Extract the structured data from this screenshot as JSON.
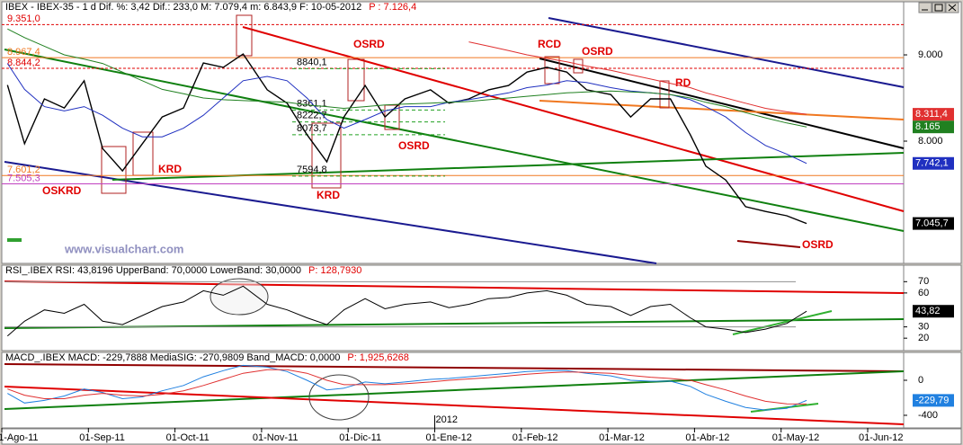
{
  "chart_data": [
    {
      "type": "line",
      "title": "IBEX - IBEX-35 - 1 d Dif. %: 3,42 Dif.: 233,0 M: 7.079,4 m: 6.843,9 F: 10-05-2012",
      "title_price": "P : 7.126,4",
      "x": [
        "03-Ago-11",
        "09-Ago-11",
        "16-Ago-11",
        "23-Ago-11",
        "30-Ago-11",
        "06-Sep-11",
        "13-Sep-11",
        "20-Sep-11",
        "27-Sep-11",
        "04-Oct-11",
        "11-Oct-11",
        "18-Oct-11",
        "25-Oct-11",
        "03-Nov-11",
        "10-Nov-11",
        "17-Nov-11",
        "24-Nov-11",
        "30-Nov-11",
        "07-Dic-11",
        "14-Dic-11",
        "21-Dic-11",
        "30-Dic-11",
        "06-Ene-12",
        "13-Ene-12",
        "20-Ene-12",
        "27-Ene-12",
        "03-Feb-12",
        "10-Feb-12",
        "17-Feb-12",
        "24-Feb-12",
        "02-Mar-12",
        "09-Mar-12",
        "16-Mar-12",
        "23-Mar-12",
        "30-Mar-12",
        "05-Abr-12",
        "12-Abr-12",
        "19-Abr-12",
        "26-Abr-12",
        "03-May-12",
        "10-May-12"
      ],
      "series": [
        {
          "color": "#000000",
          "width": 1.4,
          "last_label": "7.045,7",
          "values": [
            8650,
            7970,
            8490,
            8385,
            8700,
            7915,
            7655,
            7970,
            8280,
            8385,
            8905,
            8855,
            9010,
            8595,
            8440,
            8075,
            7760,
            8280,
            8645,
            8280,
            8490,
            8595,
            8440,
            8490,
            8595,
            8645,
            8800,
            8855,
            8800,
            8595,
            8540,
            8280,
            8490,
            8490,
            8075,
            7710,
            7550,
            7240,
            7185,
            7135,
            7045.7
          ]
        },
        {
          "color": "#2030c0",
          "width": 1,
          "last_label": "7.742,1",
          "values": [
            8900,
            8600,
            8400,
            8350,
            8400,
            8300,
            8150,
            8050,
            8050,
            8150,
            8300,
            8500,
            8700,
            8750,
            8700,
            8500,
            8250,
            8150,
            8250,
            8350,
            8400,
            8400,
            8450,
            8480,
            8520,
            8560,
            8620,
            8650,
            8700,
            8680,
            8620,
            8580,
            8560,
            8540,
            8480,
            8400,
            8280,
            8100,
            7950,
            7850,
            7742.1
          ]
        },
        {
          "color": "#208020",
          "width": 1,
          "last_label": "8.165",
          "values": [
            9300,
            9200,
            9100,
            9000,
            8950,
            8900,
            8800,
            8700,
            8600,
            8550,
            8500,
            8480,
            8470,
            8460,
            8450,
            8420,
            8400,
            8380,
            8400,
            8420,
            8430,
            8440,
            8450,
            8460,
            8480,
            8500,
            8520,
            8540,
            8560,
            8570,
            8580,
            8570,
            8560,
            8540,
            8500,
            8450,
            8400,
            8330,
            8270,
            8210,
            8165
          ]
        },
        {
          "color": "#e03030",
          "width": 1,
          "last_label": "8.311,4",
          "values": [
            null,
            null,
            null,
            null,
            null,
            null,
            null,
            null,
            null,
            null,
            null,
            null,
            null,
            null,
            null,
            null,
            null,
            null,
            null,
            null,
            null,
            null,
            null,
            9150,
            9100,
            9050,
            9000,
            8960,
            8920,
            8870,
            8820,
            8770,
            8720,
            8670,
            8620,
            8560,
            8500,
            8440,
            8380,
            8340,
            8311.4
          ]
        }
      ],
      "ylim": [
        6583,
        9490
      ],
      "yticks": [
        {
          "value": 9000,
          "label": "9.000"
        },
        {
          "value": 8000,
          "label": "8.000"
        }
      ],
      "levels": [
        {
          "value": 9351.0,
          "label": "9.351,0",
          "color": "#e00000",
          "dash": true
        },
        {
          "value": 8967.4,
          "label": "8.967,4",
          "color": "#f07820",
          "dash": false
        },
        {
          "value": 8844.2,
          "label": "8.844,2",
          "color": "#e00000",
          "dash": true
        },
        {
          "value": 7601.2,
          "label": "7.601,2",
          "color": "#f07820",
          "dash": false
        },
        {
          "value": 7505.3,
          "label": "7.505,3",
          "color": "#c040c0",
          "dash": false
        }
      ],
      "retracements": [
        {
          "value": 8840.1,
          "label": "8840,1"
        },
        {
          "value": 8361.1,
          "label": "8361,1"
        },
        {
          "value": 8222.7,
          "label": "8222,7"
        },
        {
          "value": 8073.7,
          "label": "8073,7"
        },
        {
          "value": 7594.8,
          "label": "7594,8"
        }
      ],
      "annotations": [
        "OSRD",
        "RCD",
        "OSRD",
        "RD",
        "KRD",
        "OSKRD",
        "KRD",
        "OSRD",
        "OSRD"
      ],
      "watermark": "www.visualchart.com"
    },
    {
      "type": "line",
      "title": "RSI_.IBEX RSI: 43,8196 UpperBand: 70,0000 LowerBand: 30,0000",
      "title_price": "P: 128,7930",
      "x": [
        "03-Ago-11",
        "09-Ago-11",
        "16-Ago-11",
        "23-Ago-11",
        "30-Ago-11",
        "06-Sep-11",
        "13-Sep-11",
        "20-Sep-11",
        "27-Sep-11",
        "04-Oct-11",
        "11-Oct-11",
        "18-Oct-11",
        "25-Oct-11",
        "03-Nov-11",
        "10-Nov-11",
        "17-Nov-11",
        "24-Nov-11",
        "30-Nov-11",
        "07-Dic-11",
        "14-Dic-11",
        "21-Dic-11",
        "30-Dic-11",
        "06-Ene-12",
        "13-Ene-12",
        "20-Ene-12",
        "27-Ene-12",
        "03-Feb-12",
        "10-Feb-12",
        "17-Feb-12",
        "24-Feb-12",
        "02-Mar-12",
        "09-Mar-12",
        "16-Mar-12",
        "23-Mar-12",
        "30-Mar-12",
        "05-Abr-12",
        "12-Abr-12",
        "19-Abr-12",
        "26-Abr-12",
        "03-May-12",
        "10-May-12"
      ],
      "series": [
        {
          "color": "#000000",
          "width": 1,
          "last_label": "43,82",
          "values": [
            22,
            35,
            45,
            42,
            50,
            35,
            32,
            40,
            48,
            52,
            62,
            58,
            66,
            50,
            45,
            38,
            32,
            45,
            55,
            46,
            50,
            52,
            47,
            50,
            55,
            56,
            60,
            62,
            58,
            50,
            48,
            40,
            48,
            50,
            38,
            30,
            28,
            25,
            28,
            33,
            43.82
          ]
        }
      ],
      "bands": [
        70,
        30
      ],
      "ylim": [
        9,
        79
      ],
      "yticks": [
        70,
        60,
        30,
        20
      ]
    },
    {
      "type": "line",
      "title": "MACD_.IBEX MACD: -229,7888 MediaSIG: -270,9809 Band_MACD: 0,0000",
      "title_price": "P: 1,925,6268",
      "x": [
        "03-Ago-11",
        "09-Ago-11",
        "16-Ago-11",
        "23-Ago-11",
        "30-Ago-11",
        "06-Sep-11",
        "13-Sep-11",
        "20-Sep-11",
        "27-Sep-11",
        "04-Oct-11",
        "11-Oct-11",
        "18-Oct-11",
        "25-Oct-11",
        "03-Nov-11",
        "10-Nov-11",
        "17-Nov-11",
        "24-Nov-11",
        "30-Nov-11",
        "07-Dic-11",
        "14-Dic-11",
        "21-Dic-11",
        "30-Dic-11",
        "06-Ene-12",
        "13-Ene-12",
        "20-Ene-12",
        "27-Ene-12",
        "03-Feb-12",
        "10-Feb-12",
        "17-Feb-12",
        "24-Feb-12",
        "02-Mar-12",
        "09-Mar-12",
        "16-Mar-12",
        "23-Mar-12",
        "30-Mar-12",
        "05-Abr-12",
        "12-Abr-12",
        "19-Abr-12",
        "26-Abr-12",
        "03-May-12",
        "10-May-12"
      ],
      "series": [
        {
          "color": "#2080e0",
          "width": 1,
          "last_label": "-229,79",
          "values": [
            -150,
            -260,
            -230,
            -180,
            -100,
            -140,
            -210,
            -190,
            -120,
            -60,
            40,
            110,
            170,
            150,
            100,
            0,
            -110,
            -90,
            -20,
            -40,
            -20,
            10,
            20,
            40,
            60,
            80,
            100,
            110,
            110,
            80,
            50,
            0,
            -10,
            -10,
            -70,
            -160,
            -240,
            -310,
            -340,
            -320,
            -229.79
          ]
        },
        {
          "color": "#e03030",
          "width": 1,
          "values": [
            -100,
            -170,
            -210,
            -210,
            -170,
            -150,
            -170,
            -180,
            -160,
            -120,
            -60,
            10,
            80,
            120,
            120,
            80,
            0,
            -50,
            -50,
            -50,
            -40,
            -20,
            0,
            15,
            30,
            50,
            70,
            85,
            95,
            90,
            80,
            55,
            35,
            20,
            0,
            -50,
            -110,
            -180,
            -240,
            -270,
            -270.98
          ]
        }
      ],
      "ylim": [
        -544,
        236
      ],
      "yticks": [
        0,
        -400
      ],
      "xticks": [
        "01-Ago-11",
        "01-Sep-11",
        "01-Oct-11",
        "01-Nov-11",
        "01-Dic-11",
        "01-Ene-12",
        "01-Feb-12",
        "01-Mar-12",
        "01-Abr-12",
        "01-May-12",
        "01-Jun-12"
      ],
      "year_label": "2012"
    }
  ]
}
